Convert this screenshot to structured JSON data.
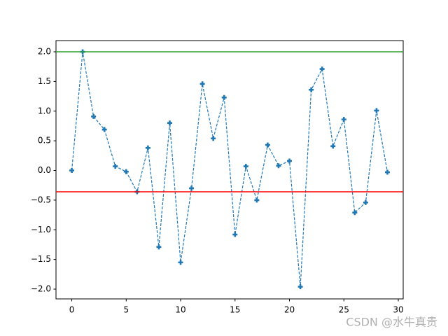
{
  "chart_data": {
    "type": "line",
    "x": [
      0,
      1,
      2,
      3,
      4,
      5,
      6,
      7,
      8,
      9,
      10,
      11,
      12,
      13,
      14,
      15,
      16,
      17,
      18,
      19,
      20,
      21,
      22,
      23,
      24,
      25,
      26,
      27,
      28,
      29
    ],
    "series": [
      {
        "color": "#1f77b4",
        "values": [
          0.0,
          2.0,
          0.91,
          0.69,
          0.07,
          -0.02,
          -0.36,
          0.38,
          -1.29,
          0.8,
          -1.55,
          -0.3,
          1.46,
          0.54,
          1.23,
          -1.08,
          0.07,
          -0.5,
          0.43,
          0.08,
          0.16,
          -1.96,
          1.36,
          1.71,
          0.41,
          0.86,
          -0.71,
          -0.54,
          1.01,
          -0.03
        ]
      }
    ],
    "hlines": [
      {
        "value": 2.0,
        "color": "#2ca02c"
      },
      {
        "value": -0.36,
        "color": "#ff0000"
      }
    ],
    "xlim": [
      -1.45,
      30.45
    ],
    "xticks": [
      0,
      5,
      10,
      15,
      20,
      25,
      30
    ],
    "ylim": [
      -2.165,
      2.189
    ],
    "yticks": [
      {
        "value": 2.0,
        "label": "2.0"
      },
      {
        "value": 1.5,
        "label": "1.5"
      },
      {
        "value": 1.0,
        "label": "1.0"
      },
      {
        "value": 0.5,
        "label": "0.5"
      },
      {
        "value": 0.0,
        "label": "0.0"
      },
      {
        "value": -0.5,
        "label": "−0.5"
      },
      {
        "value": -1.0,
        "label": "−1.0"
      },
      {
        "value": -1.5,
        "label": "−1.5"
      },
      {
        "value": -2.0,
        "label": "−2.0"
      }
    ],
    "watermark": "CSDN @水牛真贵"
  }
}
